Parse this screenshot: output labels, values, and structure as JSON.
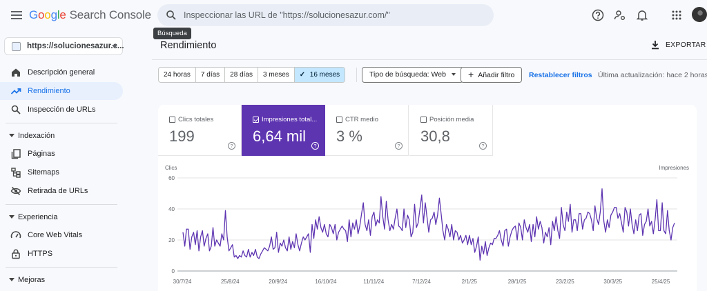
{
  "app": {
    "logo_letters": [
      "G",
      "o",
      "o",
      "g",
      "l",
      "e"
    ],
    "product": "Search Console"
  },
  "search": {
    "placeholder": "Inspeccionar las URL de \"https://solucionesazur.com/\"",
    "tooltip": "Búsqueda",
    "icon": "search-icon"
  },
  "top_icons": [
    "help-icon",
    "manage-accounts-icon",
    "notifications-icon",
    "apps-grid-icon",
    "avatar"
  ],
  "sidebar": {
    "property": "https://solucionesazur.c...",
    "items": [
      {
        "label": "Descripción general",
        "icon": "home-icon",
        "active": false
      },
      {
        "label": "Rendimiento",
        "icon": "trending-up-icon",
        "active": true
      },
      {
        "label": "Inspección de URLs",
        "icon": "search-icon",
        "active": false
      }
    ],
    "indexacion": {
      "title": "Indexación",
      "items": [
        {
          "label": "Páginas",
          "icon": "pages-icon"
        },
        {
          "label": "Sitemaps",
          "icon": "sitemap-icon"
        },
        {
          "label": "Retirada de URLs",
          "icon": "visibility-off-icon"
        }
      ]
    },
    "experiencia": {
      "title": "Experiencia",
      "items": [
        {
          "label": "Core Web Vitals",
          "icon": "speed-icon"
        },
        {
          "label": "HTTPS",
          "icon": "lock-icon"
        }
      ]
    },
    "mejoras": {
      "title": "Mejoras"
    }
  },
  "main": {
    "title": "Rendimiento",
    "export_label": "EXPORTAR",
    "date_ranges": [
      "24 horas",
      "7 días",
      "28 días",
      "3 meses",
      "16 meses"
    ],
    "selected_range": "16 meses",
    "search_type": "Tipo de búsqueda: Web",
    "add_filter": "Añadir filtro",
    "reset_filters": "Restablecer filtros",
    "last_update": "Última actualización: hace 2 horas"
  },
  "metrics": [
    {
      "label": "Clics totales",
      "value": "199",
      "selected": false
    },
    {
      "label": "Impresiones total...",
      "value": "6,64 mil",
      "selected": true
    },
    {
      "label": "CTR medio",
      "value": "3 %",
      "selected": false
    },
    {
      "label": "Posición media",
      "value": "30,8",
      "selected": false
    }
  ],
  "colors": {
    "impressions": "#5e35b1",
    "active_nav": "#1a73e8",
    "selected_range_bg": "#c2e7ff"
  },
  "chart_data": {
    "type": "line",
    "left_axis_label": "Clics",
    "right_axis_label": "Impresiones",
    "ylim": [
      0,
      60
    ],
    "y_ticks": [
      0,
      20,
      40,
      60
    ],
    "x_ticks": [
      "30/7/24",
      "25/8/24",
      "20/9/24",
      "16/10/24",
      "11/11/24",
      "7/12/24",
      "2/1/25",
      "28/1/25",
      "23/2/25",
      "30/3/25",
      "25/4/25"
    ],
    "grid": true,
    "series": [
      {
        "name": "Impresiones",
        "values": [
          25,
          16,
          27,
          27,
          14,
          22,
          25,
          17,
          26,
          13,
          22,
          26,
          16,
          21,
          24,
          13,
          16,
          28,
          16,
          20,
          18,
          16,
          24,
          20,
          39,
          22,
          13,
          15,
          17,
          9,
          10,
          8,
          10,
          9,
          13,
          10,
          9,
          14,
          9,
          12,
          10,
          14,
          9,
          8,
          11,
          13,
          15,
          14,
          13,
          16,
          22,
          14,
          15,
          25,
          12,
          18,
          16,
          20,
          15,
          13,
          22,
          14,
          19,
          15,
          24,
          17,
          13,
          18,
          22,
          20,
          22,
          24,
          12,
          30,
          21,
          33,
          27,
          35,
          28,
          25,
          30,
          24,
          22,
          30,
          28,
          24,
          30,
          20,
          25,
          27,
          29,
          27,
          26,
          19,
          33,
          22,
          31,
          27,
          33,
          24,
          29,
          37,
          44,
          30,
          26,
          33,
          23,
          35,
          38,
          29,
          33,
          31,
          48,
          35,
          27,
          45,
          33,
          26,
          30,
          27,
          34,
          40,
          29,
          28,
          26,
          40,
          28,
          36,
          33,
          22,
          25,
          43,
          28,
          31,
          40,
          49,
          31,
          44,
          35,
          25,
          33,
          34,
          38,
          30,
          36,
          47,
          37,
          26,
          20,
          30,
          27,
          22,
          30,
          20,
          26,
          25,
          20,
          23,
          18,
          20,
          23,
          17,
          23,
          17,
          21,
          12,
          16,
          22,
          7,
          16,
          11,
          19,
          10,
          15,
          18,
          17,
          21,
          21,
          23,
          26,
          20,
          16,
          26,
          27,
          16,
          22,
          26,
          28,
          29,
          20,
          31,
          28,
          20,
          33,
          28,
          25,
          30,
          19,
          30,
          22,
          35,
          27,
          32,
          28,
          18,
          25,
          22,
          28,
          17,
          32,
          26,
          35,
          26,
          21,
          41,
          30,
          26,
          38,
          32,
          43,
          25,
          33,
          33,
          26,
          37,
          37,
          27,
          33,
          34,
          38,
          37,
          33,
          26,
          42,
          34,
          30,
          38,
          53,
          32,
          25,
          33,
          28,
          36,
          38,
          41,
          41,
          34,
          37,
          31,
          25,
          41,
          38,
          29,
          40,
          30,
          24,
          33,
          26,
          36,
          37,
          23,
          30,
          32,
          40,
          29,
          32,
          24,
          33,
          46,
          26,
          26,
          44,
          26,
          24,
          39,
          26,
          20,
          28,
          31
        ]
      }
    ]
  }
}
